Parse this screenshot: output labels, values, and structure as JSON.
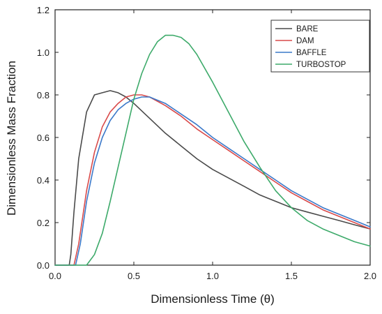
{
  "chart_data": {
    "type": "line",
    "title": "",
    "xlabel": "Dimensionless Time (θ)",
    "ylabel": "Dimensionless Mass Fraction",
    "xlim": [
      0.0,
      2.0
    ],
    "ylim": [
      0.0,
      1.2
    ],
    "x_ticks": [
      "0.0",
      "0.5",
      "1.0",
      "1.5",
      "2.0"
    ],
    "y_ticks": [
      "0.0",
      "0.2",
      "0.4",
      "0.6",
      "0.8",
      "1.0",
      "1.2"
    ],
    "grid": false,
    "legend_position": "top-right",
    "series": [
      {
        "name": "BARE",
        "color": "#4a4a4a",
        "x": [
          0.0,
          0.09,
          0.1,
          0.12,
          0.15,
          0.2,
          0.25,
          0.3,
          0.35,
          0.4,
          0.45,
          0.5,
          0.6,
          0.7,
          0.8,
          0.9,
          1.0,
          1.1,
          1.2,
          1.3,
          1.4,
          1.5,
          1.6,
          1.7,
          1.8,
          1.9,
          2.0
        ],
        "y": [
          0.0,
          0.0,
          0.05,
          0.25,
          0.5,
          0.72,
          0.8,
          0.81,
          0.82,
          0.81,
          0.79,
          0.76,
          0.69,
          0.62,
          0.56,
          0.5,
          0.45,
          0.41,
          0.37,
          0.33,
          0.3,
          0.27,
          0.25,
          0.23,
          0.21,
          0.19,
          0.17
        ]
      },
      {
        "name": "DAM",
        "color": "#d94a4a",
        "x": [
          0.0,
          0.12,
          0.15,
          0.2,
          0.25,
          0.3,
          0.35,
          0.4,
          0.45,
          0.5,
          0.55,
          0.6,
          0.7,
          0.8,
          0.9,
          1.0,
          1.1,
          1.2,
          1.3,
          1.4,
          1.5,
          1.6,
          1.7,
          1.8,
          1.9,
          2.0
        ],
        "y": [
          0.0,
          0.0,
          0.1,
          0.35,
          0.53,
          0.65,
          0.72,
          0.76,
          0.79,
          0.8,
          0.8,
          0.79,
          0.75,
          0.7,
          0.64,
          0.59,
          0.54,
          0.49,
          0.44,
          0.39,
          0.34,
          0.3,
          0.26,
          0.23,
          0.2,
          0.17
        ]
      },
      {
        "name": "BAFFLE",
        "color": "#3a78c9",
        "x": [
          0.0,
          0.13,
          0.16,
          0.2,
          0.25,
          0.3,
          0.35,
          0.4,
          0.45,
          0.5,
          0.55,
          0.6,
          0.7,
          0.8,
          0.9,
          1.0,
          1.1,
          1.2,
          1.3,
          1.4,
          1.5,
          1.6,
          1.7,
          1.8,
          1.9,
          2.0
        ],
        "y": [
          0.0,
          0.0,
          0.1,
          0.3,
          0.48,
          0.6,
          0.68,
          0.73,
          0.76,
          0.78,
          0.79,
          0.79,
          0.76,
          0.71,
          0.66,
          0.6,
          0.55,
          0.5,
          0.45,
          0.4,
          0.35,
          0.31,
          0.27,
          0.24,
          0.21,
          0.18
        ]
      },
      {
        "name": "TURBOSTOP",
        "color": "#3daa6a",
        "x": [
          0.0,
          0.2,
          0.25,
          0.3,
          0.35,
          0.4,
          0.45,
          0.5,
          0.55,
          0.6,
          0.65,
          0.7,
          0.75,
          0.8,
          0.85,
          0.9,
          1.0,
          1.1,
          1.2,
          1.3,
          1.4,
          1.5,
          1.6,
          1.7,
          1.8,
          1.9,
          2.0
        ],
        "y": [
          0.0,
          0.0,
          0.05,
          0.15,
          0.3,
          0.46,
          0.62,
          0.78,
          0.9,
          0.99,
          1.05,
          1.08,
          1.08,
          1.07,
          1.04,
          0.99,
          0.86,
          0.72,
          0.58,
          0.46,
          0.35,
          0.27,
          0.21,
          0.17,
          0.14,
          0.11,
          0.09
        ]
      }
    ]
  }
}
